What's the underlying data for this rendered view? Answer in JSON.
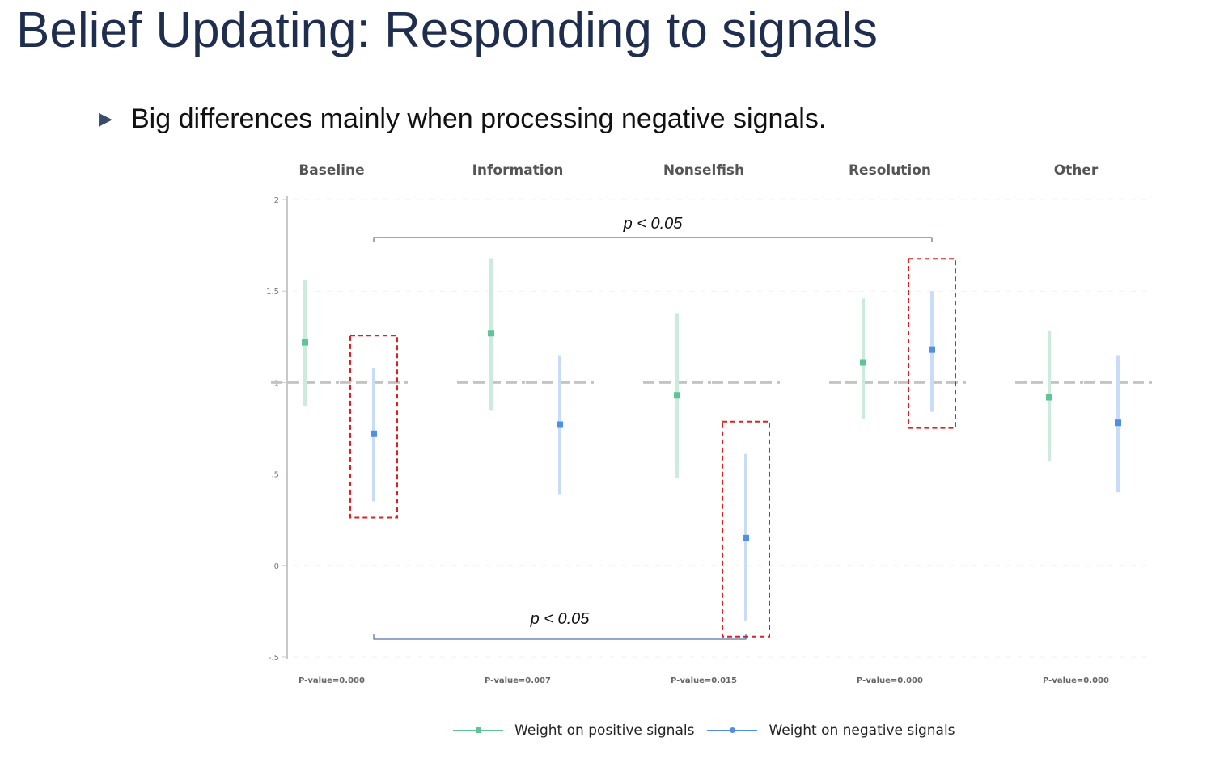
{
  "slide": {
    "title": "Belief Updating: Responding to signals",
    "bullet_marker": "▶",
    "bullet": "Big differences mainly when processing negative signals."
  },
  "colors": {
    "positive": "#5fc595",
    "positive_bar": "#cdebdd",
    "negative": "#4f8fe6",
    "negative_bar": "#c9dcf7",
    "highlight_box": "#e02020",
    "bracket": "#2f4f8f",
    "zero_line": "#c4c4c4"
  },
  "chart_data": {
    "type": "scatter",
    "description": "Coefficient point estimates with confidence intervals, faceted by treatment",
    "panels": [
      "Baseline",
      "Information",
      "Nonselfish",
      "Resolution",
      "Other"
    ],
    "panel_x_labels": [
      "P-value=0.000",
      "P-value=0.007",
      "P-value=0.015",
      "P-value=0.000",
      "P-value=0.000"
    ],
    "y_ticks": [
      2,
      1.5,
      1,
      0.5,
      0,
      -0.5
    ],
    "y_tick_labels": [
      "2",
      "1.5",
      "1",
      ".5",
      "0",
      "-.5"
    ],
    "ylim": [
      -0.5,
      2
    ],
    "reference_line": 1,
    "series": [
      {
        "name": "Weight on positive signals",
        "values": [
          1.22,
          1.27,
          0.93,
          1.11,
          0.92
        ],
        "ci_low": [
          0.87,
          0.85,
          0.48,
          0.8,
          0.57
        ],
        "ci_high": [
          1.56,
          1.68,
          1.38,
          1.46,
          1.28
        ]
      },
      {
        "name": "Weight on negative signals",
        "values": [
          0.72,
          0.77,
          0.15,
          1.18,
          0.78
        ],
        "ci_low": [
          0.35,
          0.39,
          -0.3,
          0.84,
          0.4
        ],
        "ci_high": [
          1.08,
          1.15,
          0.61,
          1.5,
          1.15
        ]
      }
    ],
    "highlights": [
      "Baseline negative",
      "Nonselfish negative",
      "Resolution negative"
    ],
    "annotations": [
      {
        "text_italic": "p",
        "text": " < 0.05",
        "from": "Baseline negative",
        "to": "Resolution negative",
        "position": "top"
      },
      {
        "text_italic": "p",
        "text": " < 0.05",
        "from": "Baseline negative",
        "to": "Nonselfish negative",
        "position": "bottom"
      }
    ],
    "legend_position": "bottom"
  }
}
